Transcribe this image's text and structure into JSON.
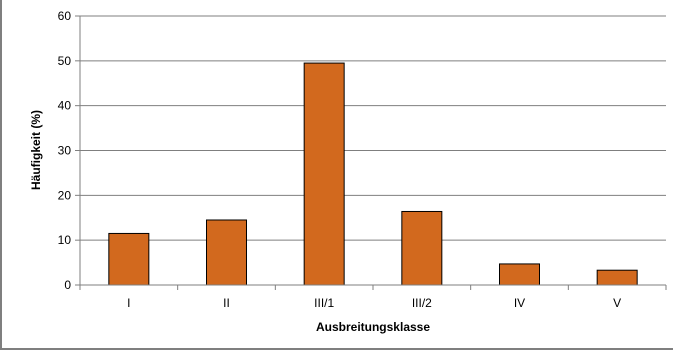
{
  "chart_data": {
    "type": "bar",
    "title": "",
    "xlabel": "Ausbreitungsklasse",
    "ylabel": "Häufigkeit (%)",
    "categories": [
      "I",
      "II",
      "III/1",
      "III/2",
      "IV",
      "V"
    ],
    "values": [
      11.5,
      14.5,
      49.5,
      16.4,
      4.7,
      3.3
    ],
    "ylim": [
      0,
      60
    ],
    "yticks": [
      "0",
      "10",
      "20",
      "30",
      "40",
      "50",
      "60"
    ],
    "grid": true,
    "legend": "none",
    "colors": {
      "bar_fill": "#d2691e",
      "bar_stroke": "#000000",
      "grid": "#7f7f7f"
    }
  }
}
